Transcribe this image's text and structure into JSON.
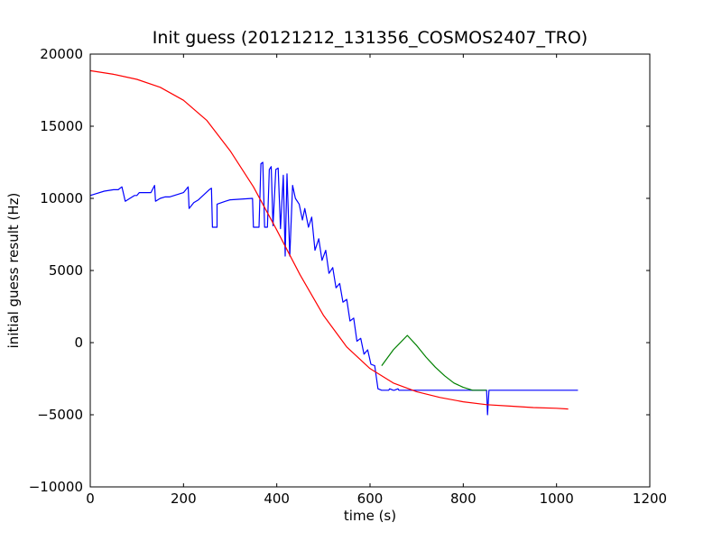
{
  "chart_data": {
    "type": "line",
    "title": "Init guess (20121212_131356_COSMOS2407_TRO)",
    "xlabel": "time (s)",
    "ylabel": "initial guess result (Hz)",
    "xlim": [
      0,
      1200
    ],
    "ylim": [
      -10000,
      20000
    ],
    "xticks": [
      0,
      200,
      400,
      600,
      800,
      1000,
      1200
    ],
    "yticks": [
      -10000,
      -5000,
      0,
      5000,
      10000,
      15000,
      20000
    ],
    "xtick_labels": [
      "0",
      "200",
      "400",
      "600",
      "800",
      "1000",
      "1200"
    ],
    "ytick_labels": [
      "−10000",
      "−5000",
      "0",
      "5000",
      "10000",
      "15000",
      "20000"
    ],
    "grid": false,
    "series": [
      {
        "color": "#0000ff",
        "x": [
          0,
          10,
          30,
          50,
          60,
          68,
          75,
          85,
          95,
          100,
          105,
          120,
          130,
          138,
          140,
          150,
          160,
          170,
          180,
          190,
          200,
          210,
          212,
          222,
          232,
          255,
          260,
          262,
          262,
          272,
          272,
          290,
          300,
          348,
          350,
          356,
          362,
          366,
          370,
          374,
          380,
          384,
          388,
          392,
          398,
          403,
          408,
          414,
          418,
          422,
          428,
          434,
          440,
          448,
          455,
          460,
          468,
          475,
          482,
          490,
          497,
          505,
          512,
          520,
          527,
          535,
          542,
          550,
          557,
          565,
          572,
          580,
          587,
          595,
          602,
          610,
          617,
          625,
          632,
          640,
          642,
          650,
          652,
          660,
          662,
          670,
          674,
          678,
          682,
          688,
          692,
          698,
          700,
          706,
          708,
          714,
          716,
          722,
          724,
          730,
          732,
          738,
          740,
          746,
          748,
          754,
          756,
          762,
          764,
          770,
          772,
          778,
          780,
          786,
          788,
          794,
          796,
          802,
          804,
          810,
          812,
          818,
          820,
          826,
          828,
          834,
          836,
          842,
          844,
          850,
          852,
          855,
          858,
          864,
          866,
          872,
          874,
          880,
          882,
          888,
          890,
          896,
          898,
          904,
          906,
          912,
          914,
          920,
          922,
          928,
          930,
          936,
          938,
          944,
          946,
          952,
          954,
          960,
          962,
          968,
          970,
          976,
          978,
          984,
          986,
          992,
          994,
          1000,
          1002,
          1008,
          1010,
          1016,
          1018,
          1022,
          1024,
          1030,
          1034,
          1038,
          1040,
          1046
        ],
        "y": [
          10200,
          10300,
          10500,
          10600,
          10600,
          10800,
          9800,
          10000,
          10200,
          10200,
          10400,
          10400,
          10400,
          10900,
          9800,
          10000,
          10100,
          10100,
          10200,
          10300,
          10400,
          10800,
          9300,
          9700,
          9900,
          10600,
          10700,
          8000,
          8000,
          8000,
          9600,
          9800,
          9900,
          10000,
          8000,
          8000,
          8000,
          12400,
          12500,
          8000,
          8000,
          12000,
          12200,
          8100,
          12000,
          12100,
          7900,
          11600,
          6000,
          11700,
          6000,
          10900,
          10000,
          9600,
          8500,
          9300,
          8000,
          8700,
          6400,
          7200,
          5700,
          6400,
          4800,
          5200,
          3800,
          4100,
          2800,
          3000,
          1500,
          1700,
          100,
          300,
          -800,
          -500,
          -1500,
          -1600,
          -3200,
          -3300,
          -3300,
          -3300,
          -3200,
          -3300,
          -3300,
          -3200,
          -3300,
          -3300,
          -3300,
          -3300,
          -3300,
          -3300,
          -3300,
          -3300,
          -3300,
          -3300,
          -3300,
          -3300,
          -3300,
          -3300,
          -3300,
          -3300,
          -3300,
          -3300,
          -3300,
          -3300,
          -3300,
          -3300,
          -3300,
          -3300,
          -3300,
          -3300,
          -3300,
          -3300,
          -3300,
          -3300,
          -3300,
          -3300,
          -3300,
          -3300,
          -3300,
          -3300,
          -3300,
          -3300,
          -3300,
          -3300,
          -3300,
          -3300,
          -3300,
          -3300,
          -3300,
          -3300,
          -5000,
          -3300,
          -3300,
          -3300,
          -3300,
          -3300,
          -3300,
          -3300,
          -3300,
          -3300,
          -3300,
          -3300,
          -3300,
          -3300,
          -3300,
          -3300,
          -3300,
          -3300,
          -3300,
          -3300,
          -3300,
          -3300,
          -3300,
          -3300,
          -3300,
          -3300,
          -3300,
          -3300,
          -3300,
          -3300,
          -3300,
          -3300,
          -3300,
          -3300,
          -3300,
          -3300,
          -3300,
          -3300,
          -3300,
          -3300,
          -3300,
          -3300,
          -3300,
          -3300,
          -3300,
          -3300,
          -3300,
          -3300,
          -3300,
          -3300
        ]
      },
      {
        "color": "#008000",
        "x": [
          625,
          650,
          680,
          700,
          720,
          740,
          760,
          780,
          800,
          820,
          840,
          850
        ],
        "y": [
          -1600,
          -500,
          500,
          -200,
          -1000,
          -1700,
          -2300,
          -2800,
          -3100,
          -3300,
          -3300,
          -3300
        ]
      },
      {
        "color": "#ff0000",
        "x": [
          0,
          50,
          100,
          150,
          200,
          250,
          300,
          350,
          400,
          450,
          500,
          550,
          600,
          650,
          700,
          750,
          800,
          850,
          900,
          950,
          1000,
          1025
        ],
        "y": [
          18850,
          18600,
          18250,
          17700,
          16800,
          15400,
          13300,
          10800,
          7800,
          4700,
          1900,
          -300,
          -1800,
          -2800,
          -3400,
          -3800,
          -4100,
          -4300,
          -4400,
          -4500,
          -4550,
          -4600
        ]
      }
    ]
  }
}
